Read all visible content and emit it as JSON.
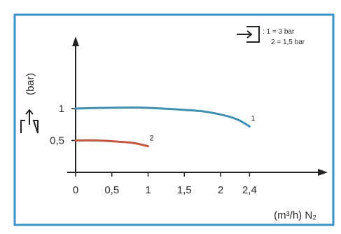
{
  "chart_data": {
    "type": "line",
    "title": "",
    "xlabel": "(m³/h) N₂",
    "ylabel": "(bar)",
    "xlim": [
      0,
      2.7
    ],
    "ylim": [
      0,
      1.6
    ],
    "x_ticks": [
      {
        "value": 0,
        "label": "0"
      },
      {
        "value": 0.5,
        "label": "0,5"
      },
      {
        "value": 1,
        "label": "1"
      },
      {
        "value": 1.5,
        "label": "1,5"
      },
      {
        "value": 2,
        "label": "2"
      },
      {
        "value": 2.4,
        "label": "2,4"
      }
    ],
    "y_ticks": [
      {
        "value": 0.5,
        "label": "0,5"
      },
      {
        "value": 1,
        "label": "1"
      }
    ],
    "grid": false,
    "series": [
      {
        "name": "1",
        "color": "#3f8fb3",
        "x": [
          0,
          0.3,
          0.6,
          0.9,
          1.2,
          1.5,
          1.8,
          2.1,
          2.25,
          2.4
        ],
        "y": [
          1.0,
          1.01,
          1.015,
          1.015,
          1.0,
          0.98,
          0.95,
          0.88,
          0.82,
          0.72
        ]
      },
      {
        "name": "2",
        "color": "#c0573f",
        "x": [
          0,
          0.3,
          0.6,
          0.8,
          1.0
        ],
        "y": [
          0.5,
          0.5,
          0.48,
          0.46,
          0.41
        ]
      }
    ],
    "legend": {
      "position": "top-right",
      "icon": "inlet-pressure-icon",
      "lines": [
        ": 1 = 3 bar",
        "2 = 1,5 bar"
      ]
    },
    "ylabel_icon": "outlet-pressure-icon"
  },
  "colors": {
    "frame": "#3a93c4",
    "axis": "#222222"
  }
}
